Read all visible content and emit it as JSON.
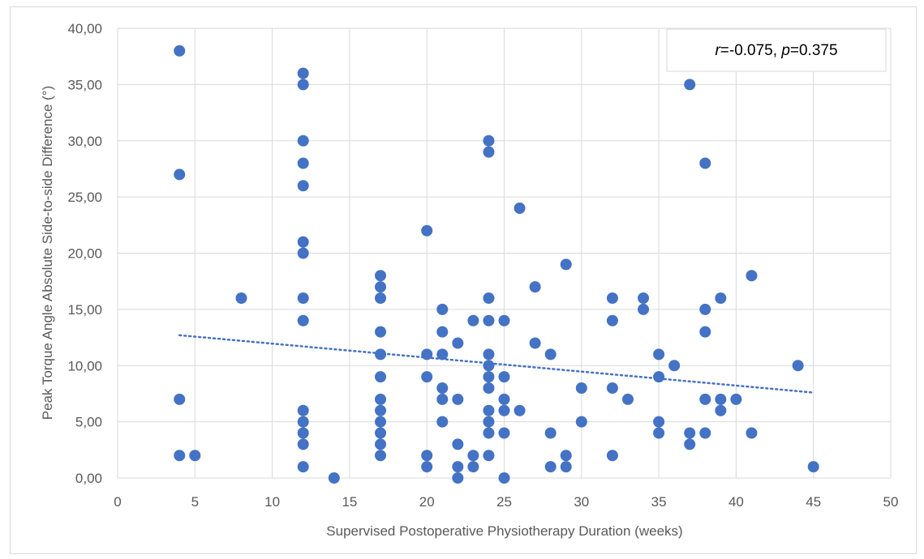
{
  "chart_data": {
    "type": "scatter",
    "title": "",
    "xlabel": "Supervised Postoperative Physiotherapy Duration (weeks)",
    "ylabel": "Peak Torque Angle Absolute Side-to-side Difference (°)",
    "xlim": [
      0,
      50
    ],
    "ylim": [
      0,
      40
    ],
    "x_ticks": [
      "0",
      "5",
      "10",
      "15",
      "20",
      "25",
      "30",
      "35",
      "40",
      "45",
      "50"
    ],
    "y_ticks": [
      "0,00",
      "5,00",
      "10,00",
      "15,00",
      "20,00",
      "25,00",
      "30,00",
      "35,00",
      "40,00"
    ],
    "grid": true,
    "point_color": "#4472c4",
    "trendline": {
      "style": "dotted",
      "x": [
        4,
        45
      ],
      "y": [
        12.7,
        7.6
      ]
    },
    "annotation": {
      "r_label": "r",
      "r_value": "=-0.075, ",
      "p_label": "p",
      "p_value": "=0.375",
      "placement": "top-right"
    },
    "points": [
      [
        4,
        38
      ],
      [
        4,
        27
      ],
      [
        4,
        7
      ],
      [
        4,
        2
      ],
      [
        5,
        2
      ],
      [
        8,
        16
      ],
      [
        12,
        36
      ],
      [
        12,
        35
      ],
      [
        12,
        30
      ],
      [
        12,
        28
      ],
      [
        12,
        26
      ],
      [
        12,
        21
      ],
      [
        12,
        20
      ],
      [
        12,
        16
      ],
      [
        12,
        14
      ],
      [
        12,
        6
      ],
      [
        12,
        5
      ],
      [
        12,
        4
      ],
      [
        12,
        3
      ],
      [
        12,
        1
      ],
      [
        14,
        0
      ],
      [
        17,
        18
      ],
      [
        17,
        17
      ],
      [
        17,
        16
      ],
      [
        17,
        13
      ],
      [
        17,
        11
      ],
      [
        17,
        9
      ],
      [
        17,
        7
      ],
      [
        17,
        6
      ],
      [
        17,
        5
      ],
      [
        17,
        4
      ],
      [
        17,
        3
      ],
      [
        17,
        2
      ],
      [
        20,
        22
      ],
      [
        20,
        11
      ],
      [
        20,
        9
      ],
      [
        20,
        2
      ],
      [
        20,
        1
      ],
      [
        21,
        15
      ],
      [
        21,
        13
      ],
      [
        21,
        11
      ],
      [
        21,
        8
      ],
      [
        21,
        7
      ],
      [
        21,
        5
      ],
      [
        22,
        12
      ],
      [
        22,
        7
      ],
      [
        22,
        3
      ],
      [
        22,
        1
      ],
      [
        22,
        0
      ],
      [
        23,
        14
      ],
      [
        23,
        2
      ],
      [
        23,
        1
      ],
      [
        24,
        30
      ],
      [
        24,
        29
      ],
      [
        24,
        16
      ],
      [
        24,
        14
      ],
      [
        24,
        11
      ],
      [
        24,
        10
      ],
      [
        24,
        9
      ],
      [
        24,
        8
      ],
      [
        24,
        6
      ],
      [
        24,
        5
      ],
      [
        24,
        4
      ],
      [
        24,
        2
      ],
      [
        25,
        14
      ],
      [
        25,
        9
      ],
      [
        25,
        7
      ],
      [
        25,
        6
      ],
      [
        25,
        4
      ],
      [
        25,
        0
      ],
      [
        26,
        24
      ],
      [
        26,
        6
      ],
      [
        27,
        17
      ],
      [
        27,
        12
      ],
      [
        28,
        11
      ],
      [
        28,
        4
      ],
      [
        28,
        1
      ],
      [
        29,
        19
      ],
      [
        29,
        2
      ],
      [
        29,
        1
      ],
      [
        30,
        8
      ],
      [
        30,
        5
      ],
      [
        32,
        16
      ],
      [
        32,
        14
      ],
      [
        32,
        8
      ],
      [
        32,
        2
      ],
      [
        33,
        7
      ],
      [
        34,
        16
      ],
      [
        34,
        15
      ],
      [
        35,
        11
      ],
      [
        35,
        9
      ],
      [
        35,
        5
      ],
      [
        35,
        4
      ],
      [
        36,
        10
      ],
      [
        37,
        35
      ],
      [
        37,
        4
      ],
      [
        37,
        3
      ],
      [
        38,
        28
      ],
      [
        38,
        15
      ],
      [
        38,
        13
      ],
      [
        38,
        7
      ],
      [
        38,
        4
      ],
      [
        39,
        16
      ],
      [
        39,
        7
      ],
      [
        39,
        6
      ],
      [
        40,
        7
      ],
      [
        41,
        18
      ],
      [
        41,
        4
      ],
      [
        44,
        10
      ],
      [
        45,
        1
      ]
    ]
  }
}
